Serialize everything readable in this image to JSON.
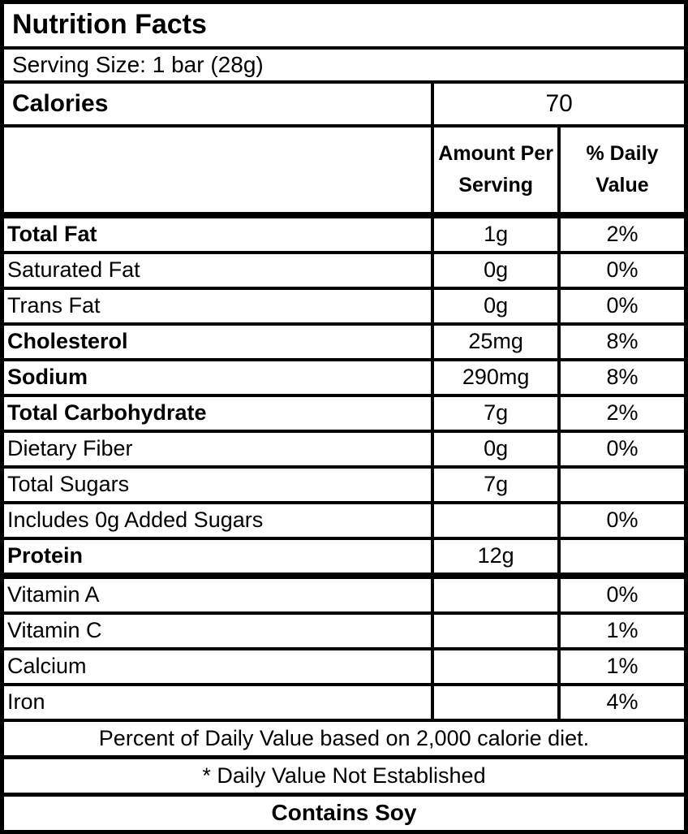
{
  "label": {
    "title": "Nutrition Facts",
    "serving_size": "Serving Size: 1 bar (28g)",
    "calories": {
      "label": "Calories",
      "value": "70"
    },
    "columns": {
      "amount": "Amount Per Serving",
      "daily": "% Daily Value"
    },
    "nutrients": [
      {
        "name": "Total Fat",
        "amount": "1g",
        "daily": "2%",
        "bold": true,
        "thick_bottom": false
      },
      {
        "name": "Saturated Fat",
        "amount": "0g",
        "daily": "0%",
        "bold": false,
        "thick_bottom": false
      },
      {
        "name": "Trans Fat",
        "amount": "0g",
        "daily": "0%",
        "bold": false,
        "thick_bottom": false
      },
      {
        "name": "Cholesterol",
        "amount": "25mg",
        "daily": "8%",
        "bold": true,
        "thick_bottom": false
      },
      {
        "name": "Sodium",
        "amount": "290mg",
        "daily": "8%",
        "bold": true,
        "thick_bottom": false
      },
      {
        "name": "Total Carbohydrate",
        "amount": "7g",
        "daily": "2%",
        "bold": true,
        "thick_bottom": false
      },
      {
        "name": "Dietary Fiber",
        "amount": "0g",
        "daily": "0%",
        "bold": false,
        "thick_bottom": false
      },
      {
        "name": "Total Sugars",
        "amount": "7g",
        "daily": "",
        "bold": false,
        "thick_bottom": false
      },
      {
        "name": "Includes 0g Added Sugars",
        "amount": "",
        "daily": "0%",
        "bold": false,
        "thick_bottom": false
      },
      {
        "name": "Protein",
        "amount": "12g",
        "daily": "",
        "bold": true,
        "thick_bottom": true
      }
    ],
    "vitamins": [
      {
        "name": "Vitamin A",
        "amount": "",
        "daily": "0%",
        "bold": false,
        "thick_bottom": false
      },
      {
        "name": "Vitamin C",
        "amount": "",
        "daily": "1%",
        "bold": false,
        "thick_bottom": false
      },
      {
        "name": "Calcium",
        "amount": "",
        "daily": "1%",
        "bold": false,
        "thick_bottom": false
      },
      {
        "name": "Iron",
        "amount": "",
        "daily": "4%",
        "bold": false,
        "thick_bottom": false
      }
    ],
    "footnotes": {
      "daily_value_basis": "Percent of Daily Value based on 2,000 calorie diet.",
      "not_established": "* Daily Value Not Established"
    },
    "allergen": "Contains Soy",
    "colors": {
      "border": "#000000",
      "text": "#000000",
      "background": "#ffffff"
    }
  }
}
